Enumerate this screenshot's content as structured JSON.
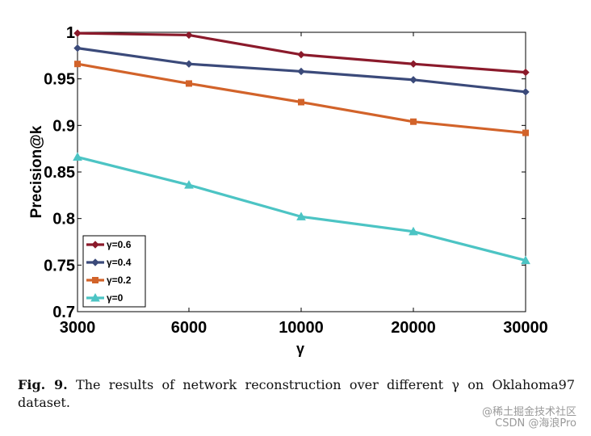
{
  "chart_data": {
    "type": "line",
    "categories": [
      "3000",
      "6000",
      "10000",
      "20000",
      "30000"
    ],
    "series": [
      {
        "name": "γ=0.6",
        "color": "#8b1a2b",
        "marker": "diamond",
        "values": [
          0.999,
          0.997,
          0.976,
          0.966,
          0.957
        ]
      },
      {
        "name": "γ=0.4",
        "color": "#3b4a7a",
        "marker": "diamond",
        "values": [
          0.983,
          0.966,
          0.958,
          0.949,
          0.936
        ]
      },
      {
        "name": "γ=0.2",
        "color": "#d2632a",
        "marker": "square",
        "values": [
          0.966,
          0.945,
          0.925,
          0.904,
          0.892
        ]
      },
      {
        "name": "γ=0",
        "color": "#4cc4c4",
        "marker": "triangle",
        "values": [
          0.866,
          0.836,
          0.802,
          0.786,
          0.755
        ]
      }
    ],
    "xlabel": "γ",
    "ylabel": "Precision@k",
    "ylim": [
      0.7,
      1.0
    ],
    "yticks": [
      "0.7",
      "0.75",
      "0.8",
      "0.85",
      "0.9",
      "0.95",
      "1"
    ],
    "grid": false,
    "legend_position": "bottom-left"
  },
  "caption": {
    "label": "Fig. 9.",
    "text": "The results of network reconstruction over different γ on Oklahoma97 dataset."
  },
  "watermark": {
    "line1": "@稀土掘金技术社区",
    "line2": "CSDN @海浪Pro"
  }
}
